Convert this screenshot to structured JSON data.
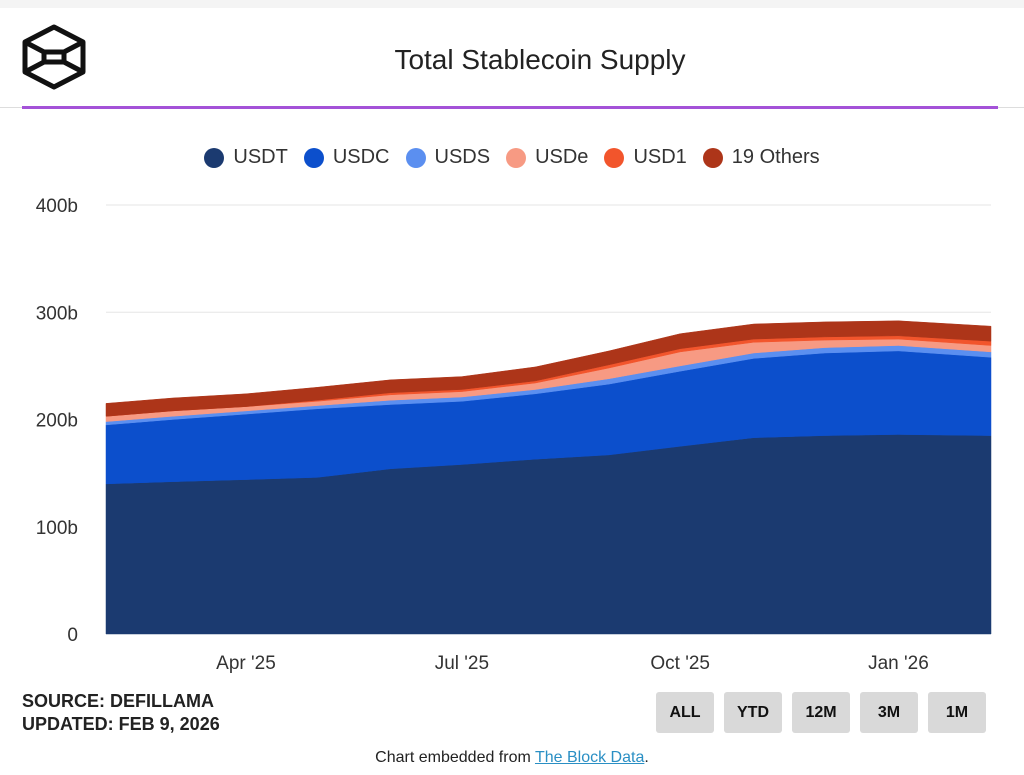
{
  "header": {
    "title": "Total Stablecoin Supply",
    "logo_icon": "the-block-cube-logo"
  },
  "chart_data": {
    "type": "area",
    "stacked": true,
    "title": "Total Stablecoin Supply",
    "xlabel": "",
    "ylabel": "",
    "ylim": [
      0,
      400
    ],
    "yticks": [
      0,
      100,
      200,
      300,
      400
    ],
    "ytick_labels": [
      "0",
      "100b",
      "200b",
      "300b",
      "400b"
    ],
    "xtick_labels": [
      {
        "label": "Apr '25",
        "date": "2025-04-01"
      },
      {
        "label": "Jul '25",
        "date": "2025-07-01"
      },
      {
        "label": "Oct '25",
        "date": "2025-10-01"
      },
      {
        "label": "Jan '26",
        "date": "2026-01-01"
      }
    ],
    "xlim": [
      "2025-02-01",
      "2026-02-09"
    ],
    "grid": true,
    "legend_position": "top-center",
    "units": "billion USD",
    "x": [
      "2025-02-01",
      "2025-03-01",
      "2025-04-01",
      "2025-05-01",
      "2025-06-01",
      "2025-07-01",
      "2025-08-01",
      "2025-09-01",
      "2025-10-01",
      "2025-11-01",
      "2025-12-01",
      "2026-01-01",
      "2026-02-09"
    ],
    "series": [
      {
        "name": "USDT",
        "color": "#1b3a70",
        "values": [
          140,
          142,
          144,
          146,
          154,
          158,
          163,
          167,
          175,
          183,
          185,
          186,
          185
        ]
      },
      {
        "name": "USDC",
        "color": "#0c4fcc",
        "values": [
          55,
          58,
          61,
          64,
          60,
          59,
          61,
          66,
          70,
          74,
          77,
          78,
          73
        ]
      },
      {
        "name": "USDS",
        "color": "#5b8ff0",
        "values": [
          3,
          3,
          3,
          3,
          4,
          4,
          4,
          5,
          5,
          5,
          5,
          5,
          5
        ]
      },
      {
        "name": "USDe",
        "color": "#f79a83",
        "values": [
          5,
          5,
          4,
          4,
          5,
          5,
          6,
          10,
          13,
          10,
          7,
          6,
          6
        ]
      },
      {
        "name": "USD1",
        "color": "#f2552c",
        "values": [
          0,
          0,
          0,
          1,
          2,
          2,
          2,
          3,
          3,
          3,
          3,
          3,
          4
        ]
      },
      {
        "name": "19 Others",
        "color": "#ad3519",
        "values": [
          12,
          12,
          12,
          12,
          12,
          12,
          13,
          13,
          14,
          14,
          14,
          14,
          14
        ]
      }
    ]
  },
  "source": {
    "line1": "SOURCE: DEFILLAMA",
    "line2": "UPDATED: FEB 9, 2026"
  },
  "range_buttons": [
    "ALL",
    "YTD",
    "12M",
    "3M",
    "1M"
  ],
  "footer": {
    "prefix": "Chart embedded from ",
    "link": "The Block Data",
    "suffix": "."
  }
}
